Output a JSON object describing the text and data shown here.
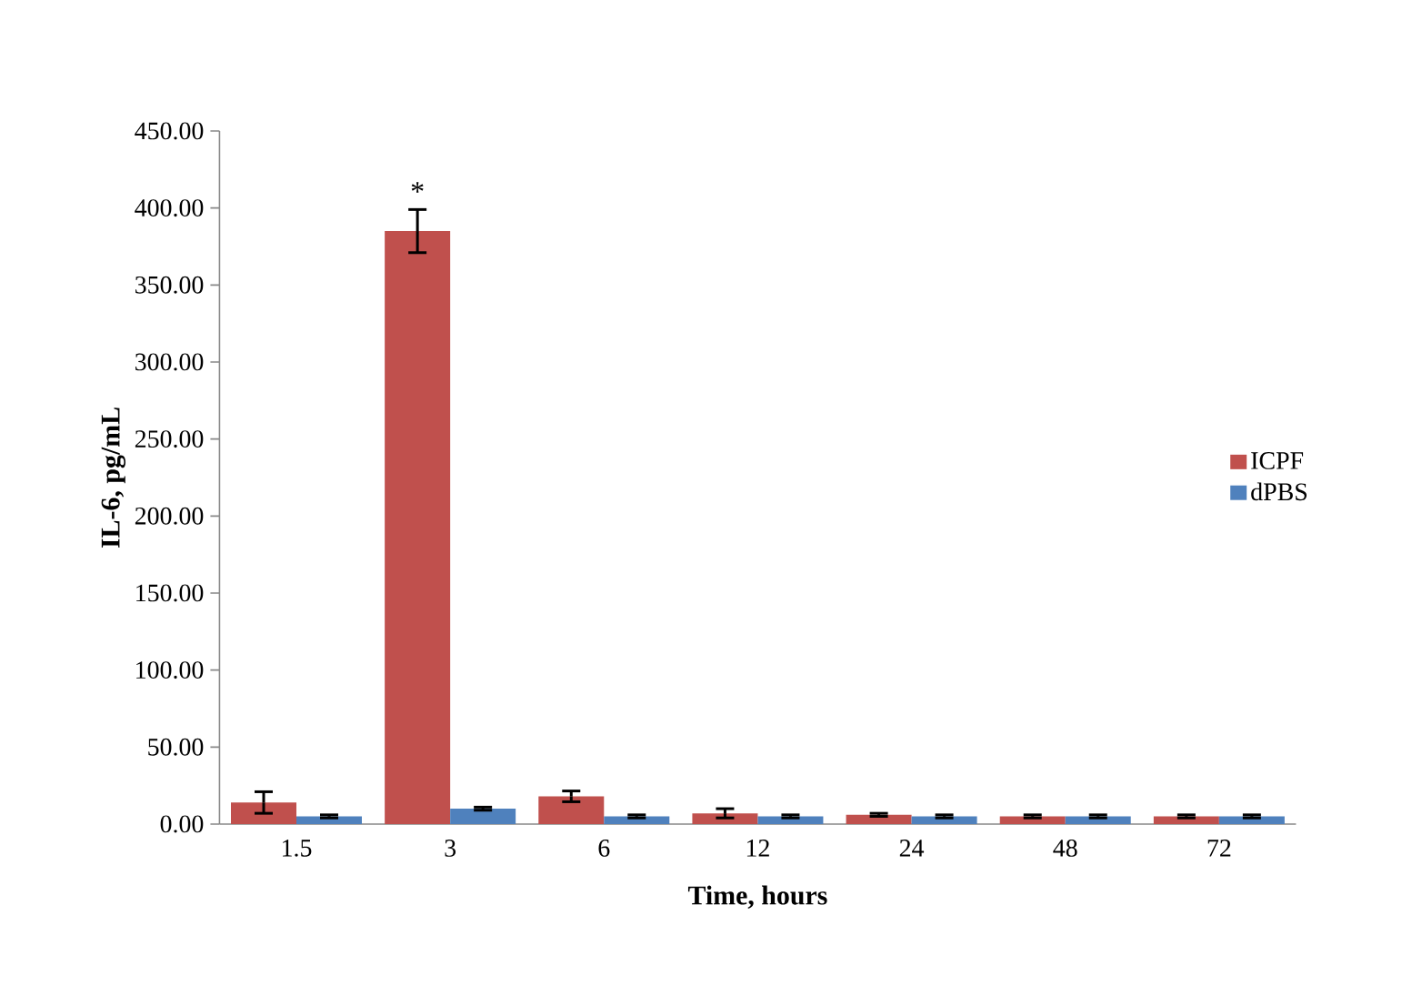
{
  "chart_data": {
    "type": "bar",
    "xlabel": "Time, hours",
    "ylabel": "IL-6, pg/mL",
    "categories": [
      "1.5",
      "3",
      "6",
      "12",
      "24",
      "48",
      "72"
    ],
    "series": [
      {
        "name": "ICPF",
        "color": "#c0504d",
        "values": [
          14,
          385,
          18,
          7,
          6,
          5,
          5
        ],
        "errors": [
          7,
          14,
          3.5,
          3,
          1,
          1,
          1
        ]
      },
      {
        "name": "dPBS",
        "color": "#4f81bd",
        "values": [
          5,
          10,
          5,
          5,
          5,
          5,
          5
        ],
        "errors": [
          1,
          1,
          1,
          1,
          1,
          1,
          1
        ]
      }
    ],
    "ylim": [
      0,
      450
    ],
    "yticks": [
      {
        "value": 0,
        "label": "0.00"
      },
      {
        "value": 50,
        "label": "50.00"
      },
      {
        "value": 100,
        "label": "100.00"
      },
      {
        "value": 150,
        "label": "150.00"
      },
      {
        "value": 200,
        "label": "200.00"
      },
      {
        "value": 250,
        "label": "250.00"
      },
      {
        "value": 300,
        "label": "300.00"
      },
      {
        "value": 350,
        "label": "350.00"
      },
      {
        "value": 400,
        "label": "400.00"
      },
      {
        "value": 450,
        "label": "450.00"
      }
    ],
    "annotations": [
      {
        "text": "*",
        "x": "3",
        "y": 385
      }
    ],
    "legend": "right",
    "grid": false
  }
}
